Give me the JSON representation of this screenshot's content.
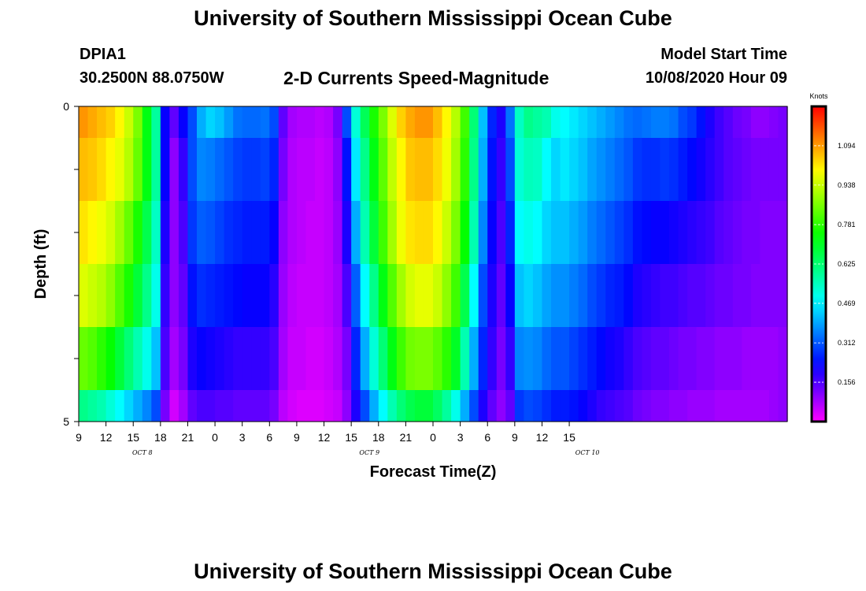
{
  "page": {
    "title": "University of Southern Mississippi Ocean Cube",
    "footer_title": "University of Southern Mississippi Ocean Cube",
    "station_id": "DPIA1",
    "station_coords": "30.2500N 88.0750W",
    "chart_title": "2-D Currents Speed-Magnitude",
    "model_start_label": "Model Start Time",
    "model_start_value": "10/08/2020 Hour 09"
  },
  "chart_data": {
    "type": "heatmap",
    "title": "2-D Currents Speed-Magnitude",
    "xlabel": "Forecast Time(Z)",
    "ylabel": "Depth (ft)",
    "units": "Knots",
    "x_hours_start": 9,
    "x_hours_end": 87,
    "x_ticks": [
      "9",
      "12",
      "15",
      "18",
      "21",
      "0",
      "3",
      "6",
      "9",
      "12",
      "15",
      "18",
      "21",
      "0",
      "3",
      "6",
      "9",
      "12",
      "15"
    ],
    "x_day_labels": [
      {
        "label": "OCT 8",
        "at_hour": 16
      },
      {
        "label": "OCT 9",
        "at_hour": 41
      },
      {
        "label": "OCT 10",
        "at_hour": 65
      }
    ],
    "y_range": [
      0,
      5
    ],
    "y_tick_labels": [
      "0",
      "5"
    ],
    "y_minor_ticks": [
      1,
      2,
      3,
      4
    ],
    "depth_bands": [
      "0-0.5",
      "0.5-1.5",
      "1.5-2.5",
      "2.5-3.5",
      "3.5-4.5",
      "4.5-5"
    ],
    "time_hours": [
      9,
      10,
      11,
      12,
      13,
      14,
      15,
      16,
      17,
      18,
      19,
      20,
      21,
      22,
      23,
      24,
      25,
      26,
      27,
      28,
      29,
      30,
      31,
      32,
      33,
      34,
      35,
      36,
      37,
      38,
      39,
      40,
      41,
      42,
      43,
      44,
      45,
      46,
      47,
      48,
      49,
      50,
      51,
      52,
      53,
      54,
      55,
      56,
      57,
      58,
      59,
      60,
      61,
      62,
      63,
      64,
      65,
      66,
      67,
      68,
      69,
      70,
      71,
      72,
      73,
      74,
      75,
      76,
      77,
      78,
      79,
      80,
      81,
      82,
      83,
      84,
      85,
      86,
      87
    ],
    "speeds": [
      [
        1.1,
        1.08,
        1.06,
        1.04,
        1.0,
        0.94,
        0.86,
        0.72,
        0.58,
        0.22,
        0.14,
        0.22,
        0.3,
        0.4,
        0.44,
        0.42,
        0.38,
        0.34,
        0.33,
        0.33,
        0.34,
        0.3,
        0.14,
        0.08,
        0.07,
        0.07,
        0.06,
        0.07,
        0.12,
        0.3,
        0.52,
        0.65,
        0.76,
        0.86,
        0.96,
        1.04,
        1.08,
        1.1,
        1.1,
        1.06,
        1.0,
        0.92,
        0.8,
        0.62,
        0.42,
        0.26,
        0.2,
        0.34,
        0.54,
        0.6,
        0.58,
        0.56,
        0.5,
        0.48,
        0.46,
        0.44,
        0.42,
        0.4,
        0.38,
        0.36,
        0.34,
        0.33,
        0.34,
        0.35,
        0.35,
        0.34,
        0.3,
        0.28,
        0.24,
        0.2,
        0.17,
        0.15,
        0.13,
        0.12,
        0.1,
        0.1,
        0.11,
        0.12,
        0.13
      ],
      [
        1.06,
        1.05,
        1.03,
        1.0,
        0.97,
        0.92,
        0.84,
        0.72,
        0.58,
        0.22,
        0.1,
        0.18,
        0.3,
        0.36,
        0.35,
        0.33,
        0.31,
        0.29,
        0.28,
        0.28,
        0.29,
        0.26,
        0.12,
        0.07,
        0.06,
        0.06,
        0.05,
        0.06,
        0.1,
        0.24,
        0.46,
        0.6,
        0.72,
        0.83,
        0.93,
        1.0,
        1.05,
        1.06,
        1.06,
        1.03,
        0.98,
        0.9,
        0.78,
        0.6,
        0.4,
        0.24,
        0.18,
        0.3,
        0.52,
        0.55,
        0.54,
        0.48,
        0.44,
        0.46,
        0.44,
        0.42,
        0.39,
        0.37,
        0.35,
        0.33,
        0.31,
        0.28,
        0.27,
        0.27,
        0.28,
        0.27,
        0.25,
        0.23,
        0.21,
        0.19,
        0.17,
        0.15,
        0.14,
        0.13,
        0.12,
        0.12,
        0.12,
        0.12,
        0.12
      ],
      [
        1.02,
        1.0,
        0.98,
        0.95,
        0.9,
        0.84,
        0.76,
        0.66,
        0.54,
        0.2,
        0.1,
        0.16,
        0.28,
        0.32,
        0.31,
        0.29,
        0.27,
        0.26,
        0.25,
        0.25,
        0.25,
        0.22,
        0.1,
        0.07,
        0.06,
        0.05,
        0.05,
        0.06,
        0.09,
        0.2,
        0.4,
        0.56,
        0.68,
        0.8,
        0.9,
        0.98,
        1.02,
        1.03,
        1.03,
        1.0,
        0.94,
        0.86,
        0.74,
        0.56,
        0.36,
        0.22,
        0.16,
        0.26,
        0.48,
        0.5,
        0.48,
        0.44,
        0.42,
        0.42,
        0.4,
        0.38,
        0.35,
        0.33,
        0.31,
        0.29,
        0.27,
        0.24,
        0.23,
        0.22,
        0.22,
        0.21,
        0.2,
        0.19,
        0.18,
        0.17,
        0.15,
        0.14,
        0.13,
        0.12,
        0.12,
        0.11,
        0.11,
        0.11,
        0.12
      ],
      [
        0.96,
        0.94,
        0.92,
        0.88,
        0.82,
        0.76,
        0.68,
        0.6,
        0.5,
        0.18,
        0.1,
        0.14,
        0.24,
        0.27,
        0.26,
        0.25,
        0.24,
        0.23,
        0.22,
        0.22,
        0.22,
        0.19,
        0.09,
        0.06,
        0.05,
        0.05,
        0.05,
        0.06,
        0.08,
        0.16,
        0.32,
        0.48,
        0.6,
        0.72,
        0.82,
        0.9,
        0.95,
        0.97,
        0.97,
        0.94,
        0.88,
        0.8,
        0.66,
        0.48,
        0.3,
        0.2,
        0.14,
        0.22,
        0.42,
        0.44,
        0.42,
        0.39,
        0.37,
        0.37,
        0.35,
        0.33,
        0.3,
        0.28,
        0.26,
        0.25,
        0.23,
        0.2,
        0.19,
        0.18,
        0.17,
        0.17,
        0.16,
        0.15,
        0.15,
        0.14,
        0.13,
        0.13,
        0.12,
        0.12,
        0.11,
        0.11,
        0.11,
        0.11,
        0.12
      ],
      [
        0.84,
        0.82,
        0.78,
        0.74,
        0.68,
        0.62,
        0.56,
        0.5,
        0.42,
        0.16,
        0.08,
        0.12,
        0.2,
        0.22,
        0.21,
        0.2,
        0.19,
        0.18,
        0.18,
        0.18,
        0.18,
        0.16,
        0.08,
        0.05,
        0.05,
        0.04,
        0.04,
        0.05,
        0.07,
        0.12,
        0.26,
        0.4,
        0.52,
        0.62,
        0.72,
        0.8,
        0.85,
        0.86,
        0.86,
        0.83,
        0.78,
        0.7,
        0.56,
        0.4,
        0.26,
        0.18,
        0.12,
        0.18,
        0.36,
        0.37,
        0.36,
        0.33,
        0.31,
        0.31,
        0.29,
        0.27,
        0.25,
        0.23,
        0.21,
        0.2,
        0.18,
        0.16,
        0.15,
        0.14,
        0.14,
        0.13,
        0.12,
        0.12,
        0.11,
        0.11,
        0.1,
        0.1,
        0.1,
        0.09,
        0.09,
        0.09,
        0.09,
        0.1,
        0.11
      ],
      [
        0.6,
        0.58,
        0.56,
        0.52,
        0.48,
        0.44,
        0.4,
        0.36,
        0.3,
        0.12,
        0.04,
        0.08,
        0.14,
        0.16,
        0.16,
        0.15,
        0.15,
        0.14,
        0.14,
        0.14,
        0.14,
        0.12,
        0.06,
        0.04,
        0.03,
        0.03,
        0.03,
        0.04,
        0.05,
        0.1,
        0.2,
        0.3,
        0.4,
        0.48,
        0.56,
        0.62,
        0.66,
        0.68,
        0.68,
        0.64,
        0.58,
        0.5,
        0.4,
        0.3,
        0.2,
        0.14,
        0.1,
        0.14,
        0.28,
        0.3,
        0.29,
        0.27,
        0.25,
        0.25,
        0.24,
        0.22,
        0.2,
        0.18,
        0.17,
        0.16,
        0.15,
        0.13,
        0.12,
        0.11,
        0.11,
        0.1,
        0.1,
        0.09,
        0.09,
        0.09,
        0.08,
        0.08,
        0.08,
        0.08,
        0.08,
        0.08,
        0.09,
        0.1,
        0.11
      ]
    ],
    "colorbar": {
      "label": "Knots",
      "range": [
        0,
        1.25
      ],
      "tick_labels": [
        "1.094",
        "0.938",
        "0.781",
        "0.625",
        "0.469",
        "0.312",
        "0.156"
      ],
      "tick_values": [
        1.094,
        0.938,
        0.781,
        0.625,
        0.469,
        0.312,
        0.156
      ]
    }
  }
}
